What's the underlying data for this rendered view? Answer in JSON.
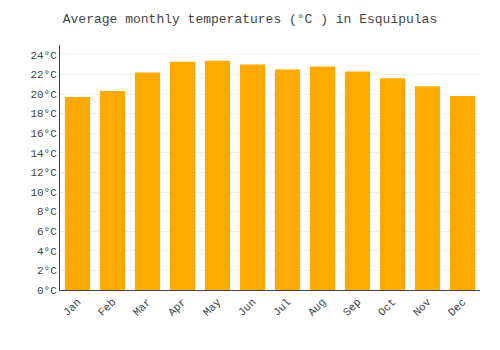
{
  "chart_data": {
    "type": "bar",
    "title": "Average monthly temperatures (°C ) in Esquipulas",
    "categories": [
      "Jan",
      "Feb",
      "Mar",
      "Apr",
      "May",
      "Jun",
      "Jul",
      "Aug",
      "Sep",
      "Oct",
      "Nov",
      "Dec"
    ],
    "values": [
      19.7,
      20.3,
      22.2,
      23.3,
      23.4,
      23.0,
      22.5,
      22.8,
      22.3,
      21.6,
      20.8,
      19.8
    ],
    "color": "#FFAA00",
    "ylim": [
      0,
      25
    ],
    "yticks": [
      {
        "value": 0,
        "label": "0°C"
      },
      {
        "value": 2,
        "label": "2°C"
      },
      {
        "value": 4,
        "label": "4°C"
      },
      {
        "value": 6,
        "label": "6°C"
      },
      {
        "value": 8,
        "label": "8°C"
      },
      {
        "value": 10,
        "label": "10°C"
      },
      {
        "value": 12,
        "label": "12°C"
      },
      {
        "value": 14,
        "label": "14°C"
      },
      {
        "value": 16,
        "label": "16°C"
      },
      {
        "value": 18,
        "label": "18°C"
      },
      {
        "value": 20,
        "label": "20°C"
      },
      {
        "value": 22,
        "label": "22°C"
      },
      {
        "value": 24,
        "label": "24°C"
      }
    ],
    "grid": true
  }
}
